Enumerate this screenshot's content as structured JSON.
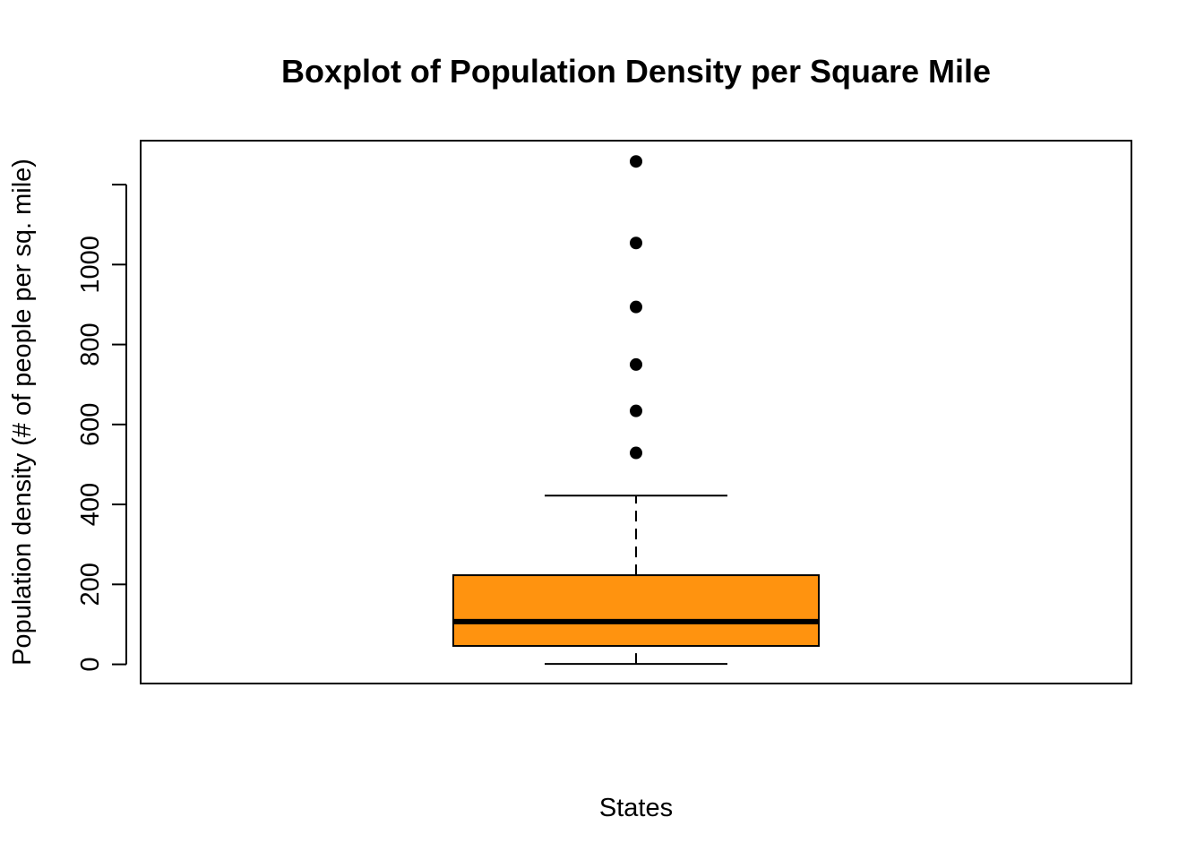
{
  "chart_data": {
    "type": "boxplot",
    "title": "Boxplot of Population Density per Square Mile",
    "xlabel": "States",
    "ylabel": "Population density (# of people per sq. mile)",
    "ylim": [
      -48,
      1310
    ],
    "y_ticks": [
      0,
      200,
      400,
      600,
      800,
      1000,
      1200
    ],
    "y_tick_labels": [
      "0",
      "200",
      "400",
      "600",
      "800",
      "1000",
      ""
    ],
    "box": {
      "whisker_min": 1,
      "q1": 46,
      "median": 107,
      "q3": 223,
      "whisker_max": 422,
      "outliers": [
        529,
        634,
        750,
        894,
        1054,
        1258
      ]
    },
    "box_color": "#FF930F",
    "grid": false,
    "legend": "none"
  }
}
